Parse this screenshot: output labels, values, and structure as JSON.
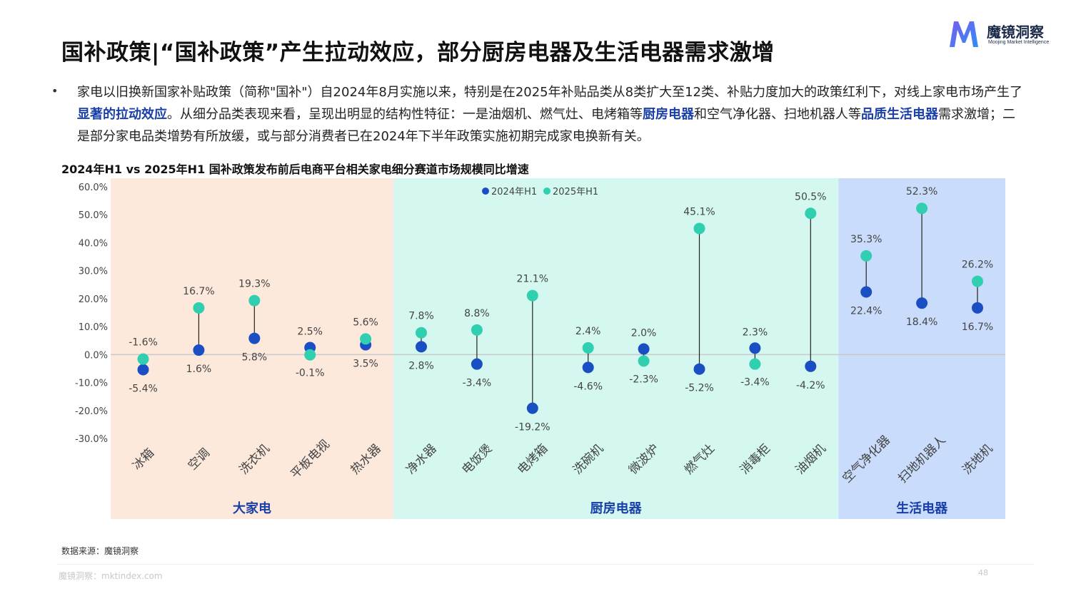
{
  "header": {
    "title": "国补政策|“国补政策”产生拉动效应，部分厨房电器及生活电器需求激增",
    "logo_name": "魔镜洞察",
    "logo_sub": "Moojing Market Intelligence"
  },
  "bullet": {
    "marker": "•",
    "part1": "家电以旧换新国家补贴政策（简称\"国补\"）自2024年8月实施以来，特别是在2025年补贴品类从8类扩大至12类、补贴力度加大的政策红利下，对线上家电市场产生了",
    "hl1": "显著的拉动效应",
    "part2": "。从细分品类表现来看，呈现出明显的结构性特征：一是油烟机、燃气灶、电烤箱等",
    "hl2": "厨房电器",
    "part3": "和空气净化器、扫地机器人等",
    "hl3": "品质生活电器",
    "part4": "需求激增；二是部分家电品类增势有所放缓，或与部分消费者已在2024年下半年政策实施初期完成家电换新有关。"
  },
  "chart_data": {
    "type": "scatter",
    "title": "2024年H1 vs 2025年H1 国补政策发布前后电商平台相关家电细分赛道市场规模同比增速",
    "categories": [
      "冰箱",
      "空调",
      "洗衣机",
      "平板电视",
      "热水器",
      "净水器",
      "电饭煲",
      "电烤箱",
      "洗碗机",
      "微波炉",
      "燃气灶",
      "消毒柜",
      "油烟机",
      "空气净化器",
      "扫地机器人",
      "洗地机"
    ],
    "series": [
      {
        "name": "2024年H1",
        "values": [
          -5.4,
          1.6,
          5.8,
          2.5,
          3.5,
          2.8,
          -3.4,
          -19.2,
          -4.6,
          2.0,
          -5.2,
          2.3,
          -4.2,
          22.4,
          18.4,
          16.7
        ],
        "labels": [
          "-5.4%",
          "1.6%",
          "5.8%",
          "2.5%",
          "3.5%",
          "2.8%",
          "-3.4%",
          "-19.2%",
          "-4.6%",
          "2.0%",
          "-5.2%",
          "2.3%",
          "-4.2%",
          "22.4%",
          "18.4%",
          "16.7%"
        ],
        "color": "#1a4fc4"
      },
      {
        "name": "2025年H1",
        "values": [
          -1.6,
          16.7,
          19.3,
          -0.1,
          5.6,
          7.8,
          8.8,
          21.1,
          2.4,
          -2.3,
          45.1,
          -3.4,
          50.5,
          35.3,
          52.3,
          26.2
        ],
        "labels": [
          "-1.6%",
          "16.7%",
          "19.3%",
          "-0.1%",
          "5.6%",
          "7.8%",
          "8.8%",
          "21.1%",
          "2.4%",
          "-2.3%",
          "45.1%",
          "-3.4%",
          "50.5%",
          "35.3%",
          "52.3%",
          "26.2%"
        ],
        "color": "#2fcfb0"
      }
    ],
    "ylim": [
      -30,
      60
    ],
    "yticks": [
      "60.0%",
      "50.0%",
      "40.0%",
      "30.0%",
      "20.0%",
      "10.0%",
      "0.0%",
      "-10.0%",
      "-20.0%",
      "-30.0%"
    ],
    "groups": [
      {
        "label": "大家电",
        "count": 5,
        "color": "#fde8dc"
      },
      {
        "label": "厨房电器",
        "count": 8,
        "color": "#d4f8f0"
      },
      {
        "label": "生活电器",
        "count": 3,
        "color": "#c9dcfb"
      }
    ],
    "legend_position": "top-center"
  },
  "footer": {
    "source": "数据来源：魔镜洞察",
    "site": "魔镜洞察：mktindex.com",
    "page": "48"
  }
}
